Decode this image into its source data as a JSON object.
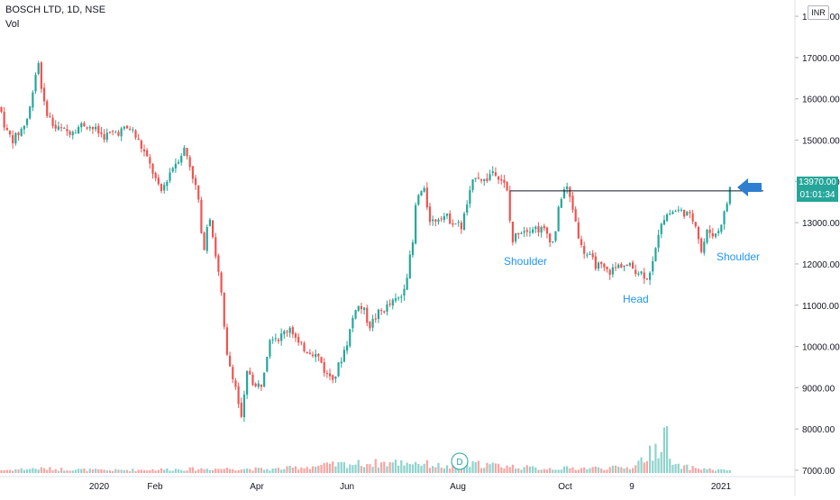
{
  "header": {
    "symbol_line": "BOSCH LTD, 1D, NSE",
    "volume_label": "Vol"
  },
  "currency": "INR",
  "price_badge": {
    "last_price": "13970.00",
    "countdown": "01:01:34",
    "color": "#26a69a"
  },
  "colors": {
    "up": "#26a69a",
    "down": "#ef5350",
    "vol_up": "#8fd3cc",
    "vol_down": "#f6a5a3",
    "annotation": "#2196f3",
    "arrow": "#2f7fd0",
    "line": "#131722"
  },
  "annotations": {
    "left_shoulder": "Shoulder",
    "head": "Head",
    "right_shoulder": "Shoulder",
    "marker": "D"
  },
  "chart_data": {
    "type": "candlestick",
    "title": "BOSCH LTD, 1D, NSE",
    "y_axis_ticks": [
      "7000.00",
      "8000.00",
      "9000.00",
      "10000.00",
      "11000.00",
      "12000.00",
      "13000.00",
      "14000.00",
      "15000.00",
      "16000.00",
      "17000.00",
      "18000.00"
    ],
    "x_axis_ticks": [
      "2020",
      "Feb",
      "Apr",
      "Jun",
      "Aug",
      "Oct",
      "9",
      "2021"
    ],
    "ylim": [
      7000,
      18000
    ],
    "neckline": 13770,
    "series": [
      {
        "name": "Vol",
        "type": "volume"
      }
    ],
    "price_path": [
      [
        0,
        15800
      ],
      [
        7,
        15200
      ],
      [
        15,
        15000
      ],
      [
        25,
        15300
      ],
      [
        32,
        15600
      ],
      [
        38,
        16500
      ],
      [
        43,
        16900
      ],
      [
        48,
        15900
      ],
      [
        60,
        15300
      ],
      [
        75,
        15200
      ],
      [
        95,
        15400
      ],
      [
        115,
        15100
      ],
      [
        130,
        15200
      ],
      [
        145,
        15300
      ],
      [
        160,
        14700
      ],
      [
        170,
        14200
      ],
      [
        178,
        13700
      ],
      [
        190,
        14300
      ],
      [
        205,
        14800
      ],
      [
        212,
        14300
      ],
      [
        220,
        13600
      ],
      [
        225,
        12200
      ],
      [
        232,
        13300
      ],
      [
        238,
        12400
      ],
      [
        245,
        11400
      ],
      [
        251,
        9800
      ],
      [
        260,
        9200
      ],
      [
        268,
        8200
      ],
      [
        275,
        9500
      ],
      [
        283,
        9000
      ],
      [
        290,
        9100
      ],
      [
        300,
        10300
      ],
      [
        310,
        10200
      ],
      [
        322,
        10500
      ],
      [
        332,
        10000
      ],
      [
        345,
        9900
      ],
      [
        355,
        9700
      ],
      [
        362,
        9300
      ],
      [
        372,
        9300
      ],
      [
        385,
        10100
      ],
      [
        395,
        11000
      ],
      [
        403,
        10900
      ],
      [
        410,
        10500
      ],
      [
        420,
        10800
      ],
      [
        432,
        11000
      ],
      [
        445,
        11200
      ],
      [
        452,
        11800
      ],
      [
        458,
        12500
      ],
      [
        462,
        13600
      ],
      [
        470,
        13800
      ],
      [
        478,
        13000
      ],
      [
        490,
        13200
      ],
      [
        505,
        13000
      ],
      [
        512,
        12900
      ],
      [
        520,
        13600
      ],
      [
        528,
        14200
      ],
      [
        538,
        14000
      ],
      [
        548,
        14300
      ],
      [
        558,
        14000
      ],
      [
        563,
        13700
      ],
      [
        568,
        12500
      ],
      [
        575,
        12800
      ],
      [
        590,
        12900
      ],
      [
        605,
        12800
      ],
      [
        614,
        12500
      ],
      [
        622,
        13600
      ],
      [
        628,
        13900
      ],
      [
        635,
        13400
      ],
      [
        645,
        12400
      ],
      [
        660,
        12000
      ],
      [
        675,
        11800
      ],
      [
        690,
        12000
      ],
      [
        702,
        11900
      ],
      [
        710,
        11800
      ],
      [
        718,
        11700
      ],
      [
        726,
        12100
      ],
      [
        732,
        13000
      ],
      [
        740,
        13200
      ],
      [
        750,
        13300
      ],
      [
        760,
        13250
      ],
      [
        772,
        13000
      ],
      [
        778,
        12300
      ],
      [
        785,
        12800
      ],
      [
        795,
        12700
      ],
      [
        805,
        13300
      ],
      [
        811,
        13970
      ]
    ],
    "volume_profile": [
      [
        0,
        3
      ],
      [
        40,
        5
      ],
      [
        120,
        3
      ],
      [
        180,
        4
      ],
      [
        260,
        5
      ],
      [
        300,
        4
      ],
      [
        384,
        10
      ],
      [
        460,
        12
      ],
      [
        500,
        6
      ],
      [
        530,
        10
      ],
      [
        600,
        5
      ],
      [
        700,
        6
      ],
      [
        730,
        28
      ],
      [
        738,
        50
      ],
      [
        745,
        8
      ],
      [
        800,
        3
      ],
      [
        811,
        4
      ]
    ]
  }
}
